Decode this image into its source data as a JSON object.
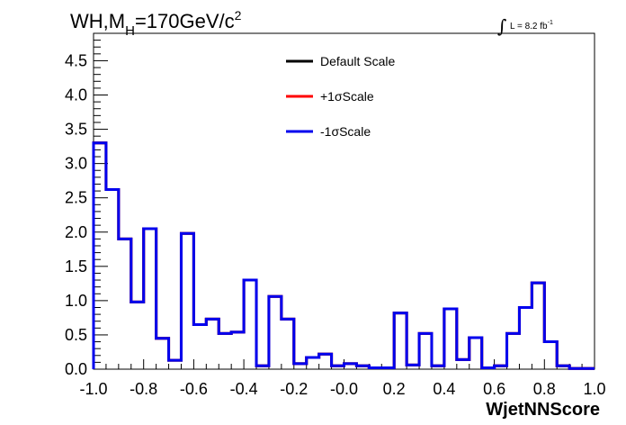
{
  "chart_data": {
    "type": "line",
    "title_prefix": "WH,M",
    "title_sub": "H",
    "title_suffix": "=170GeV/c",
    "title_sup": "2",
    "lumi_symbol": "∫",
    "lumi_text": "L = 8.2 fb",
    "lumi_sup": "-1",
    "xlabel": "WjetNNScore",
    "ylabel": "",
    "xlim": [
      -1.0,
      1.0
    ],
    "ylim": [
      0,
      4.9
    ],
    "x_ticks": [
      "-1.0",
      "-0.8",
      "-0.6",
      "-0.4",
      "-0.2",
      "-0.0",
      "0.2",
      "0.4",
      "0.6",
      "0.8",
      "1.0"
    ],
    "x_tick_values": [
      -1.0,
      -0.8,
      -0.6,
      -0.4,
      -0.2,
      0.0,
      0.2,
      0.4,
      0.6,
      0.8,
      1.0
    ],
    "y_ticks": [
      "0.0",
      "0.5",
      "1.0",
      "1.5",
      "2.0",
      "2.5",
      "3.0",
      "3.5",
      "4.0",
      "4.5"
    ],
    "y_tick_values": [
      0.0,
      0.5,
      1.0,
      1.5,
      2.0,
      2.5,
      3.0,
      3.5,
      4.0,
      4.5
    ],
    "bin_edges": [
      -1.0,
      -0.95,
      -0.9,
      -0.85,
      -0.8,
      -0.75,
      -0.7,
      -0.65,
      -0.6,
      -0.55,
      -0.5,
      -0.45,
      -0.4,
      -0.35,
      -0.3,
      -0.25,
      -0.2,
      -0.15,
      -0.1,
      -0.05,
      0.0,
      0.05,
      0.1,
      0.15,
      0.2,
      0.25,
      0.3,
      0.35,
      0.4,
      0.45,
      0.5,
      0.55,
      0.6,
      0.65,
      0.7,
      0.75,
      0.8,
      0.85,
      0.9,
      0.95,
      1.0
    ],
    "legend_position": "top-center",
    "series": [
      {
        "name": "Default Scale",
        "color": "#000000",
        "values": [
          3.3,
          2.62,
          1.9,
          0.98,
          2.05,
          0.45,
          0.13,
          1.98,
          0.65,
          0.73,
          0.52,
          0.54,
          1.3,
          0.05,
          1.06,
          0.73,
          0.08,
          0.17,
          0.22,
          0.05,
          0.08,
          0.05,
          0.02,
          0.02,
          0.82,
          0.06,
          0.52,
          0.05,
          0.88,
          0.14,
          0.46,
          0.02,
          0.05,
          0.52,
          0.9,
          1.26,
          0.4,
          0.05,
          0.01,
          0.01
        ]
      },
      {
        "name": "+1σScale",
        "color": "#ff0000",
        "values": [
          3.3,
          2.62,
          1.9,
          0.98,
          2.05,
          0.45,
          0.13,
          1.98,
          0.65,
          0.73,
          0.52,
          0.54,
          1.3,
          0.05,
          1.06,
          0.73,
          0.08,
          0.17,
          0.22,
          0.05,
          0.08,
          0.05,
          0.02,
          0.02,
          0.82,
          0.06,
          0.52,
          0.05,
          0.88,
          0.14,
          0.46,
          0.02,
          0.05,
          0.52,
          0.9,
          1.26,
          0.4,
          0.05,
          0.01,
          0.01
        ]
      },
      {
        "name": "-1σScale",
        "color": "#0000ee",
        "values": [
          3.3,
          2.62,
          1.9,
          0.98,
          2.05,
          0.45,
          0.13,
          1.98,
          0.65,
          0.73,
          0.52,
          0.54,
          1.3,
          0.05,
          1.06,
          0.73,
          0.08,
          0.17,
          0.22,
          0.05,
          0.08,
          0.05,
          0.02,
          0.02,
          0.82,
          0.06,
          0.52,
          0.05,
          0.88,
          0.14,
          0.46,
          0.02,
          0.05,
          0.52,
          0.9,
          1.26,
          0.4,
          0.05,
          0.01,
          0.01
        ]
      }
    ]
  }
}
